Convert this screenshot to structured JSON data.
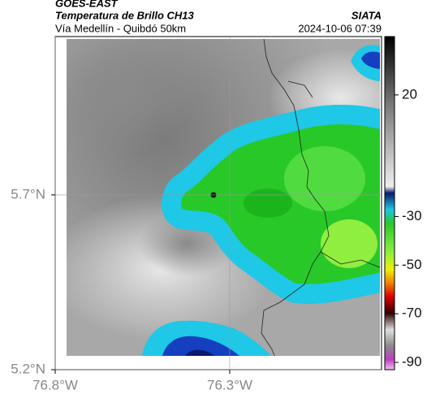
{
  "chart_data": {
    "type": "map",
    "title": "GOES-EAST",
    "subtitle": "Temperatura de Brillo CH13",
    "region": "Vía Medellín - Quibdó 50km",
    "source": "SIATA",
    "timestamp": "2024-10-06 07:39",
    "xlim": [
      -76.8,
      -75.865
    ],
    "ylim": [
      5.2,
      6.153
    ],
    "xticks": [
      {
        "value": -76.8,
        "label": "76.8°W"
      },
      {
        "value": -76.3,
        "label": "76.3°W"
      }
    ],
    "yticks": [
      {
        "value": 5.2,
        "label": "5.2°N"
      },
      {
        "value": 5.7,
        "label": "5.7°N"
      }
    ],
    "grid": true,
    "colorbar": {
      "lim": [
        -93,
        44
      ],
      "ticks": [
        20,
        -30,
        -50,
        -70,
        -90
      ]
    }
  }
}
